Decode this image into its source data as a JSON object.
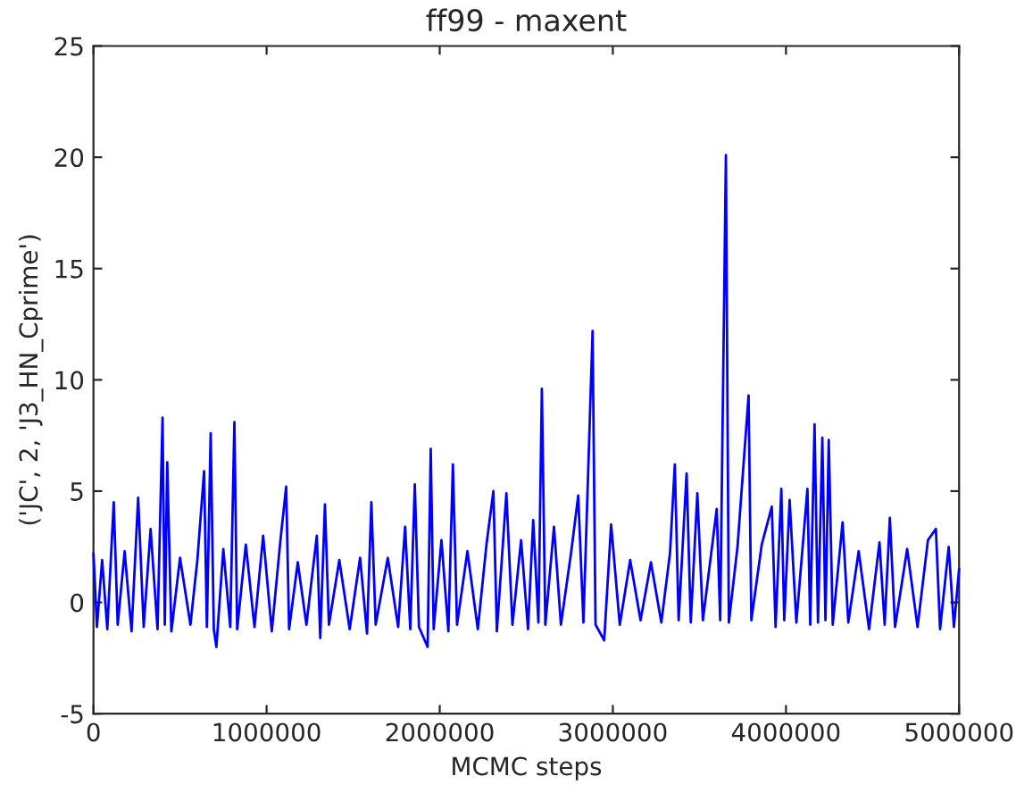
{
  "chart_data": {
    "type": "line",
    "title": "ff99 - maxent",
    "xlabel": "MCMC steps",
    "ylabel": "('JC', 2, 'J3_HN_Cprime')",
    "xlim": [
      0,
      5000000
    ],
    "xticks": [
      0,
      1000000,
      2000000,
      3000000,
      4000000,
      5000000
    ],
    "ylim": [
      -5,
      25
    ],
    "yticks": [
      -5,
      0,
      5,
      10,
      15,
      20,
      25
    ],
    "grid": false,
    "legend": false,
    "series": [
      {
        "color": "#0000ff",
        "x": [
          0,
          20000,
          50000,
          80000,
          117000,
          140000,
          180000,
          220000,
          258000,
          290000,
          330000,
          370000,
          399000,
          412000,
          426000,
          450000,
          500000,
          560000,
          600000,
          639000,
          655000,
          677000,
          695000,
          710000,
          750000,
          790000,
          814000,
          830000,
          880000,
          930000,
          980000,
          1030000,
          1080000,
          1113000,
          1130000,
          1180000,
          1230000,
          1290000,
          1310000,
          1337000,
          1360000,
          1420000,
          1480000,
          1540000,
          1580000,
          1605000,
          1630000,
          1700000,
          1760000,
          1800000,
          1830000,
          1856000,
          1880000,
          1930000,
          1948000,
          1965000,
          2010000,
          2050000,
          2076000,
          2100000,
          2160000,
          2220000,
          2270000,
          2310000,
          2330000,
          2385000,
          2420000,
          2470000,
          2510000,
          2540000,
          2570000,
          2590000,
          2610000,
          2660000,
          2700000,
          2760000,
          2800000,
          2830000,
          2883000,
          2900000,
          2950000,
          2990000,
          3040000,
          3100000,
          3160000,
          3220000,
          3280000,
          3330000,
          3358000,
          3380000,
          3426000,
          3450000,
          3488000,
          3520000,
          3600000,
          3620000,
          3653000,
          3670000,
          3720000,
          3784000,
          3800000,
          3860000,
          3918000,
          3940000,
          3973000,
          3990000,
          4021000,
          4060000,
          4124000,
          4140000,
          4165000,
          4185000,
          4210000,
          4228000,
          4247000,
          4270000,
          4327000,
          4360000,
          4420000,
          4480000,
          4540000,
          4570000,
          4600000,
          4630000,
          4700000,
          4760000,
          4820000,
          4866000,
          4890000,
          4940000,
          4970000,
          5000000
        ],
        "values": [
          2.2,
          -1.1,
          1.9,
          -1.2,
          4.5,
          -1.0,
          2.3,
          -1.3,
          4.7,
          -1.1,
          3.3,
          -1.2,
          8.3,
          -1.0,
          6.3,
          -1.3,
          2.0,
          -1.0,
          1.9,
          5.9,
          -1.1,
          7.6,
          -1.2,
          -2.0,
          2.4,
          -1.1,
          8.1,
          -1.2,
          2.6,
          -1.1,
          3.0,
          -1.3,
          2.8,
          5.2,
          -1.2,
          1.8,
          -1.0,
          3.0,
          -1.6,
          4.4,
          -1.0,
          1.9,
          -1.2,
          2.0,
          -1.4,
          4.5,
          -1.0,
          2.0,
          -1.1,
          3.4,
          -1.2,
          5.3,
          -1.1,
          -2.0,
          6.9,
          -1.2,
          2.8,
          -1.3,
          6.2,
          -1.0,
          2.3,
          -1.2,
          2.6,
          5.0,
          -1.3,
          4.9,
          -1.0,
          2.8,
          -1.2,
          3.7,
          -0.9,
          9.6,
          -1.0,
          3.4,
          -1.0,
          2.3,
          4.8,
          -0.9,
          12.2,
          -1.0,
          -1.7,
          3.5,
          -1.0,
          1.9,
          -0.8,
          1.8,
          -0.9,
          2.2,
          6.2,
          -0.8,
          5.8,
          -0.9,
          4.9,
          -0.8,
          4.2,
          -0.8,
          20.1,
          -0.9,
          2.5,
          9.3,
          -0.8,
          2.6,
          4.3,
          -1.1,
          5.1,
          -0.8,
          4.6,
          -0.9,
          5.1,
          -1.0,
          8.0,
          -0.9,
          7.4,
          -0.8,
          7.3,
          -1.0,
          3.6,
          -0.9,
          2.3,
          -1.2,
          2.7,
          -1.0,
          3.8,
          -1.1,
          2.4,
          -1.1,
          2.8,
          3.3,
          -1.2,
          2.5,
          -1.1,
          1.5
        ]
      }
    ]
  }
}
